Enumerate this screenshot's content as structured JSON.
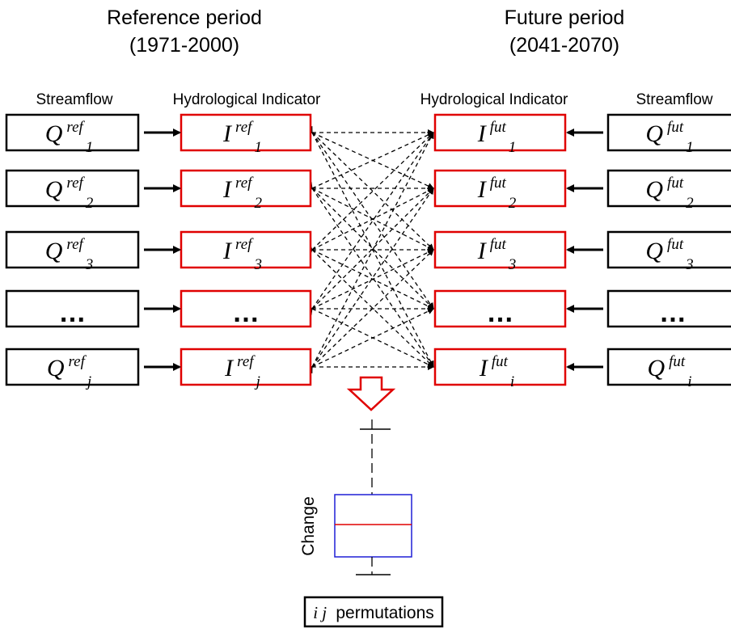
{
  "titles": {
    "reference_line1": "Reference period",
    "reference_line2": "(1971-2000)",
    "future_line1": "Future period",
    "future_line2": "(2041-2070)"
  },
  "column_headers": {
    "streamflow_left": "Streamflow",
    "indicator_left": "Hydrological Indicator",
    "indicator_right": "Hydrological Indicator",
    "streamflow_right": "Streamflow"
  },
  "rows": [
    {
      "ref_base": "Q",
      "ref_ind": "I",
      "ref_sup": "ref",
      "ref_sub": "1",
      "fut_base": "Q",
      "fut_ind": "I",
      "fut_sup": "fut",
      "fut_sub": "1"
    },
    {
      "ref_base": "Q",
      "ref_ind": "I",
      "ref_sup": "ref",
      "ref_sub": "2",
      "fut_base": "Q",
      "fut_ind": "I",
      "fut_sup": "fut",
      "fut_sub": "2"
    },
    {
      "ref_base": "Q",
      "ref_ind": "I",
      "ref_sup": "ref",
      "ref_sub": "3",
      "fut_base": "Q",
      "fut_ind": "I",
      "fut_sup": "fut",
      "fut_sub": "3"
    },
    {
      "ellipsis": "…"
    },
    {
      "ref_base": "Q",
      "ref_ind": "I",
      "ref_sup": "ref",
      "ref_sub": "j",
      "fut_base": "Q",
      "fut_ind": "I",
      "fut_sup": "fut",
      "fut_sub": "i"
    }
  ],
  "boxplot": {
    "axis_label": "Change",
    "median_color": "#e00000",
    "box_color": "#1f1fd6"
  },
  "permutations": {
    "vars": "i j",
    "text": "permutations"
  },
  "colors": {
    "indicator_border": "#e00000",
    "streamflow_border": "#000000"
  }
}
